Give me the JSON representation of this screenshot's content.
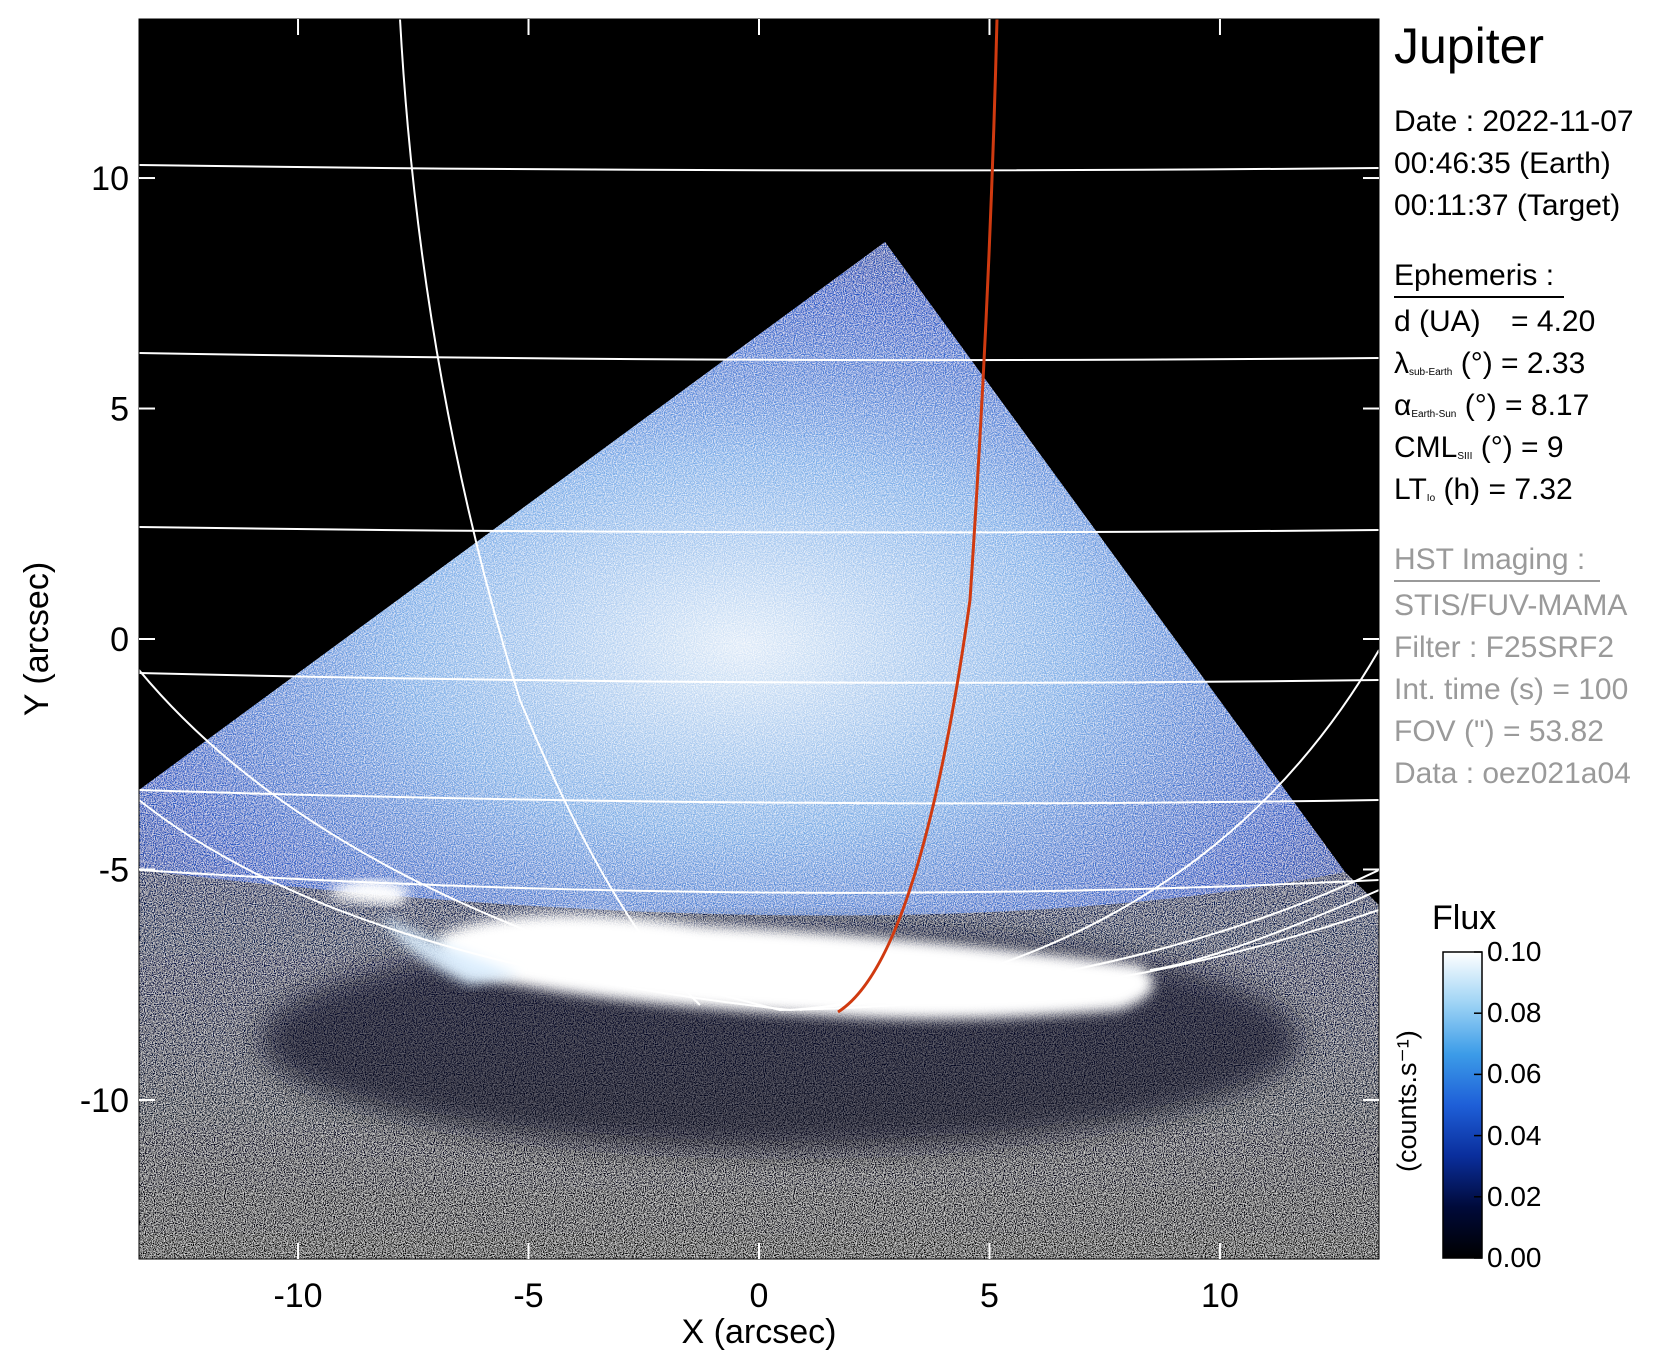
{
  "target": "Jupiter",
  "date": {
    "date_line": "Date : 2022-11-07",
    "earth_time": "00:46:35 (Earth)",
    "target_time": "00:11:37 (Target)"
  },
  "ephemeris": {
    "heading": "Ephemeris :",
    "distance": {
      "label": "d (UA)",
      "value": "= 4.20"
    },
    "lambda": {
      "symbol": "λ",
      "sub": "sub-Earth",
      "rest": "(°) = 2.33"
    },
    "alpha": {
      "symbol": "α",
      "sub": "Earth-Sun",
      "rest": "(°) = 8.17"
    },
    "cml": {
      "symbol": "CML",
      "sub": "SIII",
      "rest": "(°) = 9"
    },
    "lt": {
      "symbol": "LT",
      "sub": "Io",
      "rest": "(h) = 7.32"
    }
  },
  "hst": {
    "heading": "HST Imaging :",
    "instrument": "STIS/FUV-MAMA",
    "filter": "Filter : F25SRF2",
    "int_time": "Int. time (s) = 100",
    "fov": "FOV (\") = 53.82",
    "data": "Data : oez021a04"
  },
  "colorbar": {
    "title": "Flux",
    "unit": "(counts.s⁻¹)",
    "ticks": [
      "0.10",
      "0.08",
      "0.06",
      "0.04",
      "0.02",
      "0.00"
    ],
    "stops": [
      "#000000",
      "#000a3a",
      "#0a2e9c",
      "#1e5fd8",
      "#3c9ce8",
      "#9fd4f5",
      "#ffffff"
    ]
  },
  "axes": {
    "xlabel": "X (arcsec)",
    "ylabel": "Y (arcsec)",
    "xticks": [
      "-10",
      "-5",
      "0",
      "5",
      "10"
    ],
    "yticks": [
      "10",
      "5",
      "0",
      "-5",
      "-10"
    ]
  },
  "colors": {
    "background": "#000000",
    "grid": "#ffffff",
    "footprint": "#d03a10",
    "hst_text": "#9a9a9a"
  }
}
